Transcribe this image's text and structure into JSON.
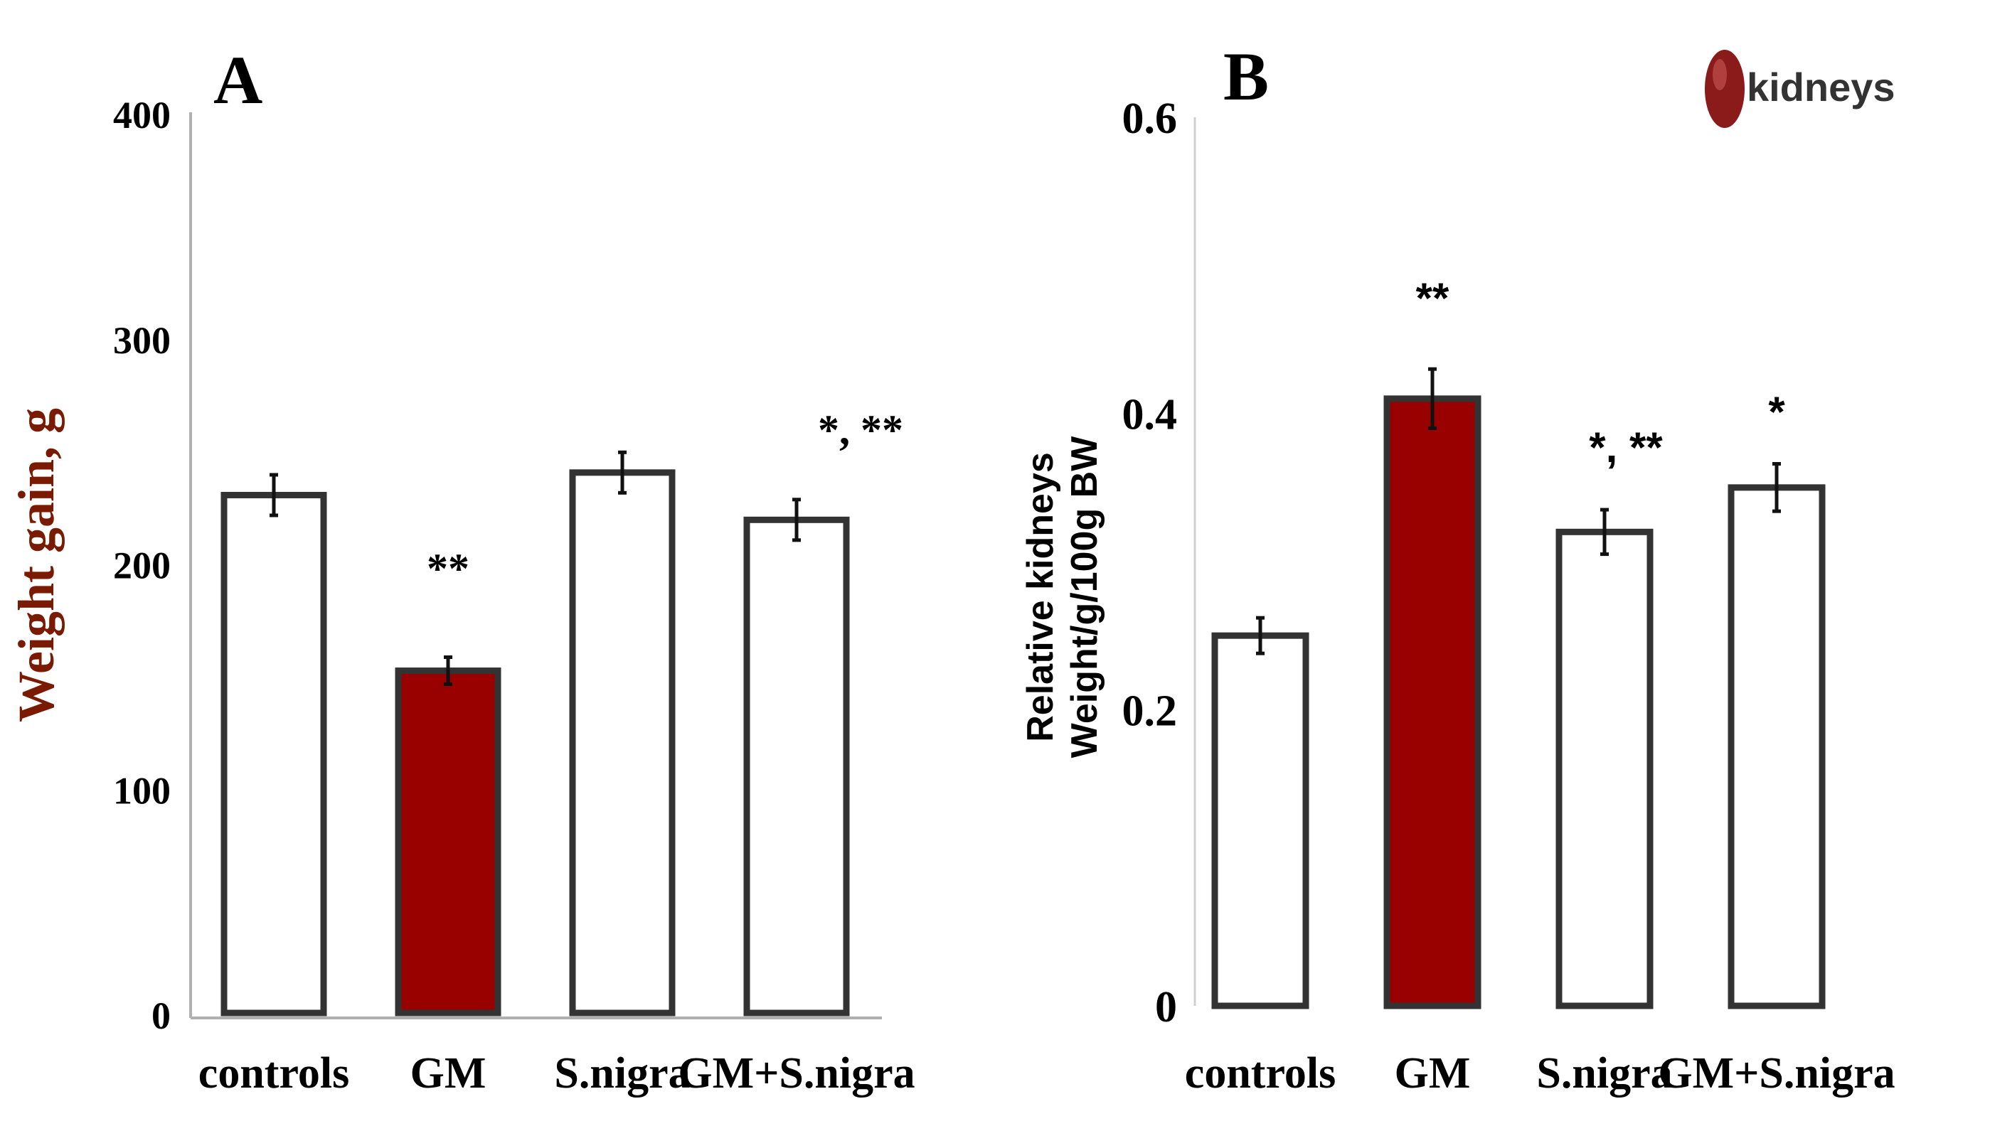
{
  "figure": {
    "logo_text": "kidneys",
    "colors": {
      "highlight": "#990000",
      "open": "#ffffff",
      "stroke": "#333333",
      "text": "#000000",
      "axis": "#b0b0b0",
      "ylabel_A": "#7a1a00"
    }
  },
  "chart_data": [
    {
      "panel": "A",
      "type": "bar",
      "title": "A",
      "ylabel": "Weight gain, g",
      "xlabel": "",
      "ylim": [
        0,
        400
      ],
      "yticks": [
        0,
        100,
        200,
        300,
        400
      ],
      "categories": [
        "controls",
        "GM",
        "S.nigra",
        "GM+S.nigra"
      ],
      "values": [
        230,
        152,
        240,
        219
      ],
      "errors": [
        9,
        6,
        9,
        9
      ],
      "filled": [
        false,
        true,
        false,
        false
      ],
      "annotations": [
        "",
        "**",
        "",
        "*, **"
      ]
    },
    {
      "panel": "B",
      "type": "bar",
      "title": "B",
      "ylabel_lines": [
        "Relative kidneys",
        "Weight/g/100g BW"
      ],
      "xlabel": "",
      "ylim": [
        0,
        0.6
      ],
      "yticks": [
        "0",
        "0.2",
        "0.4",
        "0.6"
      ],
      "categories": [
        "controls",
        "GM",
        "S.nigra",
        "GM+S.nigra"
      ],
      "values": [
        0.25,
        0.41,
        0.32,
        0.35
      ],
      "errors": [
        0.012,
        0.02,
        0.015,
        0.016
      ],
      "filled": [
        false,
        true,
        false,
        false
      ],
      "annotations": [
        "",
        "**",
        "*, **",
        "*"
      ]
    }
  ]
}
